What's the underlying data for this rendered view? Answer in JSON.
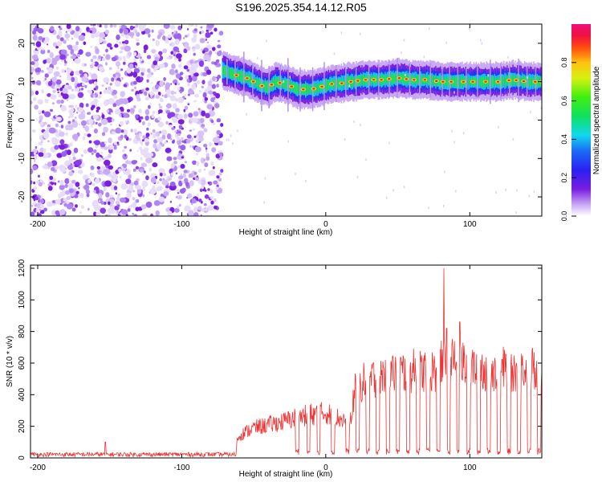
{
  "title": "S196.2025.354.14.12.R05",
  "chart_data": [
    {
      "type": "heatmap",
      "xlabel": "Height of straight line (km)",
      "ylabel": "Frequency (Hz)",
      "xlim": [
        -205,
        150
      ],
      "ylim": [
        -25,
        25
      ],
      "x_ticks": [
        -200,
        -100,
        0,
        100
      ],
      "y_ticks": [
        -20,
        -10,
        0,
        10,
        20
      ],
      "noise_region_x": [
        -205,
        -72
      ],
      "signal_region_x": [
        -72,
        150
      ],
      "signal_ridge": {
        "x": [
          -72,
          -65,
          -60,
          -55,
          -50,
          -45,
          -40,
          -35,
          -30,
          -25,
          -20,
          -15,
          -10,
          -5,
          0,
          5,
          10,
          15,
          20,
          25,
          30,
          40,
          50,
          60,
          70,
          80,
          90,
          100,
          110,
          120,
          130,
          140,
          150
        ],
        "freq": [
          13,
          12,
          11.5,
          11,
          10,
          9,
          8.5,
          10,
          9.5,
          9,
          8,
          8,
          8,
          8.5,
          9,
          9.5,
          9.5,
          10,
          10,
          10.5,
          10.5,
          10.5,
          11,
          10.5,
          10.5,
          10,
          10,
          10,
          10,
          10,
          10.5,
          10,
          10
        ]
      },
      "colorbar": {
        "label": "Normalized spectral amplitude",
        "range": [
          0,
          1
        ],
        "ticks": [
          0.0,
          0.2,
          0.4,
          0.6,
          0.8
        ],
        "tick_labels": [
          "0.0",
          "0.2",
          "0.4",
          "0.6",
          "0.8"
        ],
        "colormap": "rainbow (violet -> blue -> cyan -> green -> yellow -> red -> magenta)"
      }
    },
    {
      "type": "line",
      "xlabel": "Height of straight line (km)",
      "ylabel": "SNR (10 * v/v)",
      "xlim": [
        -205,
        150
      ],
      "ylim": [
        0,
        1220
      ],
      "x_ticks": [
        -200,
        -100,
        0,
        100
      ],
      "y_ticks": [
        0,
        200,
        400,
        600,
        800,
        1000,
        1200
      ],
      "series": [
        {
          "name": "SNR",
          "color": "#ee3333",
          "level_segments": {
            "x": [
              -205,
              -65,
              -60,
              -50,
              -40,
              -30,
              -20,
              -10,
              0,
              10,
              18,
              20,
              40,
              60,
              75,
              80,
              90,
              100,
              120,
              150
            ],
            "snr": [
              30,
              30,
              150,
              200,
              220,
              240,
              270,
              290,
              300,
              260,
              240,
              480,
              560,
              580,
              580,
              620,
              640,
              600,
              590,
              590
            ]
          },
          "spikes": [
            {
              "x": -153,
              "snr": 100
            },
            {
              "x": 82,
              "snr": 1200
            },
            {
              "x": 93,
              "snr": 860
            },
            {
              "x": 84,
              "snr": 820
            }
          ],
          "dropout_x": [
            -20,
            -12,
            -5,
            5,
            15,
            22,
            29,
            36,
            43,
            50,
            57,
            64,
            71,
            78,
            85,
            92,
            99,
            106,
            113,
            120,
            127,
            134,
            141,
            148
          ]
        }
      ]
    }
  ]
}
